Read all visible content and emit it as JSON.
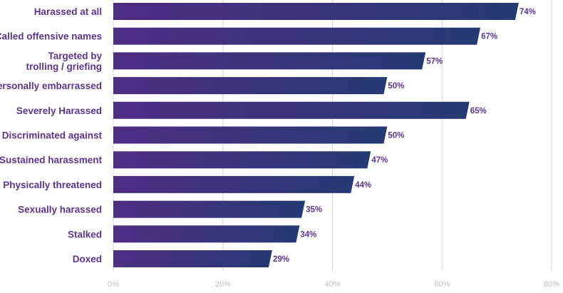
{
  "chart_data": {
    "type": "bar",
    "orientation": "horizontal",
    "categories": [
      "Harassed at all",
      "Called offensive names",
      "Targeted by trolling / griefing",
      "Personally embarrassed",
      "Severely Harassed",
      "Discriminated against",
      "Sustained harassment",
      "Physically threatened",
      "Sexually harassed",
      "Stalked",
      "Doxed"
    ],
    "category_lines": [
      [
        "Harassed at all"
      ],
      [
        "Called offensive names"
      ],
      [
        "Targeted by",
        "trolling / griefing"
      ],
      [
        "Personally embarrassed"
      ],
      [
        "Severely Harassed"
      ],
      [
        "Discriminated against"
      ],
      [
        "Sustained harassment"
      ],
      [
        "Physically threatened"
      ],
      [
        "Sexually harassed"
      ],
      [
        "Stalked"
      ],
      [
        "Doxed"
      ]
    ],
    "values": [
      74,
      67,
      57,
      50,
      65,
      50,
      47,
      44,
      35,
      34,
      29
    ],
    "value_labels": [
      "74%",
      "67%",
      "57%",
      "50%",
      "65%",
      "50%",
      "47%",
      "44%",
      "35%",
      "34%",
      "29%"
    ],
    "x_ticks": [
      0,
      20,
      40,
      60,
      80
    ],
    "x_tick_labels": [
      "0%",
      "20%",
      "40%",
      "60%",
      "80%"
    ],
    "xlim": [
      0,
      80
    ],
    "grid": true,
    "title": "",
    "xlabel": "",
    "ylabel": "",
    "colors": {
      "bar_start": "#4f2d83",
      "bar_end": "#243a73",
      "label": "#5b3596",
      "tick": "#b9bcc4",
      "grid": "#d4d6dc"
    }
  }
}
